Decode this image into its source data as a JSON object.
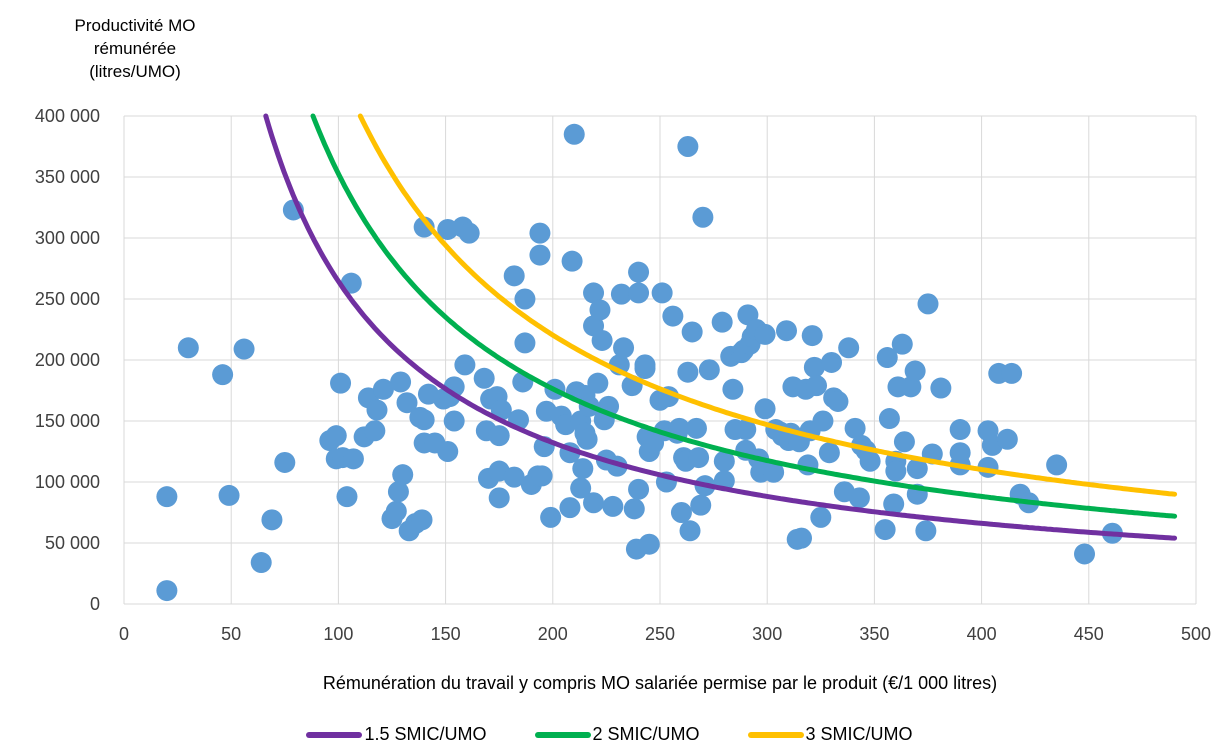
{
  "chart_data": {
    "type": "scatter",
    "ylabel_lines": [
      "Productivité MO",
      "rémunérée",
      "(litres/UMO)"
    ],
    "xlabel": "Rémunération du travail y compris MO salariée permise par le produit (€/1 000 litres)",
    "xlim": [
      0,
      500
    ],
    "ylim": [
      0,
      400000
    ],
    "x_ticks": [
      0,
      50,
      100,
      150,
      200,
      250,
      300,
      350,
      400,
      450,
      500
    ],
    "x_tick_labels": [
      "0",
      "50",
      "100",
      "150",
      "200",
      "250",
      "300",
      "350",
      "400",
      "450",
      "500"
    ],
    "y_ticks": [
      0,
      50000,
      100000,
      150000,
      200000,
      250000,
      300000,
      350000,
      400000
    ],
    "y_tick_labels": [
      "0",
      "50 000",
      "100 000",
      "150 000",
      "200 000",
      "250 000",
      "300 000",
      "350 000",
      "400 000"
    ],
    "grid": "horizontal and vertical",
    "legend_position": "bottom",
    "point_color": "#5b9bd5",
    "curves": [
      {
        "name": "1.5 SMIC/UMO",
        "color": "#7030a0",
        "k": 26450000
      },
      {
        "name": "2 SMIC/UMO",
        "color": "#00b050",
        "k": 35270000
      },
      {
        "name": "3 SMIC/UMO",
        "color": "#ffc000",
        "k": 44090000
      }
    ],
    "points": [
      [
        20,
        11000
      ],
      [
        20,
        88000
      ],
      [
        30,
        210000
      ],
      [
        46,
        188000
      ],
      [
        49,
        89000
      ],
      [
        56,
        209000
      ],
      [
        64,
        34000
      ],
      [
        69,
        69000
      ],
      [
        75,
        116000
      ],
      [
        79,
        323000
      ],
      [
        96,
        134000
      ],
      [
        99,
        138000
      ],
      [
        99,
        119000
      ],
      [
        101,
        181000
      ],
      [
        102,
        120000
      ],
      [
        104,
        88000
      ],
      [
        106,
        263000
      ],
      [
        107,
        119000
      ],
      [
        112,
        137000
      ],
      [
        114,
        169000
      ],
      [
        117,
        142000
      ],
      [
        118,
        159000
      ],
      [
        121,
        176000
      ],
      [
        125,
        70000
      ],
      [
        127,
        76000
      ],
      [
        128,
        92000
      ],
      [
        129,
        182000
      ],
      [
        130,
        106000
      ],
      [
        132,
        165000
      ],
      [
        133,
        60000
      ],
      [
        136,
        66000
      ],
      [
        138,
        153000
      ],
      [
        139,
        69000
      ],
      [
        140,
        151000
      ],
      [
        140,
        132000
      ],
      [
        140,
        309000
      ],
      [
        142,
        172000
      ],
      [
        145,
        132000
      ],
      [
        149,
        168000
      ],
      [
        151,
        125000
      ],
      [
        152,
        170000
      ],
      [
        154,
        178000
      ],
      [
        154,
        150000
      ],
      [
        151,
        307000
      ],
      [
        158,
        309000
      ],
      [
        159,
        196000
      ],
      [
        161,
        304000
      ],
      [
        168,
        185000
      ],
      [
        169,
        142000
      ],
      [
        170,
        103000
      ],
      [
        171,
        168000
      ],
      [
        174,
        170000
      ],
      [
        175,
        109000
      ],
      [
        175,
        138000
      ],
      [
        175,
        87000
      ],
      [
        176,
        159000
      ],
      [
        182,
        269000
      ],
      [
        182,
        104000
      ],
      [
        184,
        151000
      ],
      [
        186,
        182000
      ],
      [
        187,
        250000
      ],
      [
        187,
        214000
      ],
      [
        190,
        98000
      ],
      [
        193,
        105000
      ],
      [
        194,
        304000
      ],
      [
        194,
        286000
      ],
      [
        195,
        105000
      ],
      [
        196,
        129000
      ],
      [
        197,
        158000
      ],
      [
        199,
        71000
      ],
      [
        201,
        176000
      ],
      [
        204,
        154000
      ],
      [
        206,
        147000
      ],
      [
        208,
        79000
      ],
      [
        208,
        124000
      ],
      [
        209,
        281000
      ],
      [
        210,
        385000
      ],
      [
        211,
        174000
      ],
      [
        213,
        150000
      ],
      [
        213,
        95000
      ],
      [
        214,
        111000
      ],
      [
        215,
        171000
      ],
      [
        215,
        140000
      ],
      [
        216,
        135000
      ],
      [
        217,
        162000
      ],
      [
        219,
        83000
      ],
      [
        219,
        228000
      ],
      [
        219,
        255000
      ],
      [
        221,
        181000
      ],
      [
        222,
        241000
      ],
      [
        223,
        216000
      ],
      [
        224,
        151000
      ],
      [
        225,
        118000
      ],
      [
        226,
        162000
      ],
      [
        228,
        80000
      ],
      [
        230,
        113000
      ],
      [
        231,
        196000
      ],
      [
        233,
        210000
      ],
      [
        232,
        254000
      ],
      [
        237,
        179000
      ],
      [
        238,
        78000
      ],
      [
        239,
        45000
      ],
      [
        240,
        94000
      ],
      [
        240,
        255000
      ],
      [
        240,
        272000
      ],
      [
        243,
        196000
      ],
      [
        243,
        193000
      ],
      [
        244,
        137000
      ],
      [
        245,
        49000
      ],
      [
        245,
        125000
      ],
      [
        247,
        132000
      ],
      [
        250,
        167000
      ],
      [
        251,
        255000
      ],
      [
        252,
        142000
      ],
      [
        253,
        100000
      ],
      [
        254,
        170000
      ],
      [
        256,
        236000
      ],
      [
        258,
        140000
      ],
      [
        259,
        144000
      ],
      [
        260,
        75000
      ],
      [
        261,
        120000
      ],
      [
        262,
        117000
      ],
      [
        263,
        190000
      ],
      [
        263,
        375000
      ],
      [
        264,
        60000
      ],
      [
        265,
        223000
      ],
      [
        267,
        144000
      ],
      [
        268,
        120000
      ],
      [
        269,
        81000
      ],
      [
        270,
        317000
      ],
      [
        271,
        97000
      ],
      [
        273,
        192000
      ],
      [
        279,
        231000
      ],
      [
        280,
        117000
      ],
      [
        280,
        101000
      ],
      [
        283,
        203000
      ],
      [
        284,
        176000
      ],
      [
        285,
        143000
      ],
      [
        288,
        206000
      ],
      [
        289,
        208000
      ],
      [
        290,
        143000
      ],
      [
        290,
        126000
      ],
      [
        291,
        237000
      ],
      [
        292,
        213000
      ],
      [
        293,
        219000
      ],
      [
        295,
        225000
      ],
      [
        296,
        119000
      ],
      [
        297,
        108000
      ],
      [
        299,
        221000
      ],
      [
        299,
        160000
      ],
      [
        303,
        108000
      ],
      [
        304,
        143000
      ],
      [
        306,
        141000
      ],
      [
        307,
        138000
      ],
      [
        309,
        224000
      ],
      [
        310,
        134000
      ],
      [
        311,
        140000
      ],
      [
        312,
        178000
      ],
      [
        314,
        53000
      ],
      [
        315,
        133000
      ],
      [
        316,
        54000
      ],
      [
        318,
        176000
      ],
      [
        319,
        114000
      ],
      [
        320,
        142000
      ],
      [
        321,
        220000
      ],
      [
        322,
        194000
      ],
      [
        323,
        179000
      ],
      [
        325,
        71000
      ],
      [
        326,
        150000
      ],
      [
        329,
        124000
      ],
      [
        330,
        198000
      ],
      [
        331,
        169000
      ],
      [
        333,
        166000
      ],
      [
        336,
        92000
      ],
      [
        338,
        210000
      ],
      [
        341,
        144000
      ],
      [
        343,
        87000
      ],
      [
        344,
        130000
      ],
      [
        346,
        126000
      ],
      [
        348,
        117000
      ],
      [
        355,
        61000
      ],
      [
        356,
        202000
      ],
      [
        357,
        152000
      ],
      [
        359,
        82000
      ],
      [
        360,
        117000
      ],
      [
        360,
        109000
      ],
      [
        361,
        178000
      ],
      [
        363,
        213000
      ],
      [
        364,
        133000
      ],
      [
        367,
        178000
      ],
      [
        369,
        191000
      ],
      [
        370,
        90000
      ],
      [
        370,
        111000
      ],
      [
        374,
        60000
      ],
      [
        375,
        246000
      ],
      [
        377,
        123000
      ],
      [
        381,
        177000
      ],
      [
        390,
        114000
      ],
      [
        390,
        143000
      ],
      [
        390,
        124000
      ],
      [
        403,
        112000
      ],
      [
        403,
        142000
      ],
      [
        405,
        130000
      ],
      [
        408,
        189000
      ],
      [
        412,
        135000
      ],
      [
        414,
        189000
      ],
      [
        418,
        90000
      ],
      [
        422,
        83000
      ],
      [
        435,
        114000
      ],
      [
        448,
        41000
      ],
      [
        461,
        58000
      ]
    ]
  }
}
